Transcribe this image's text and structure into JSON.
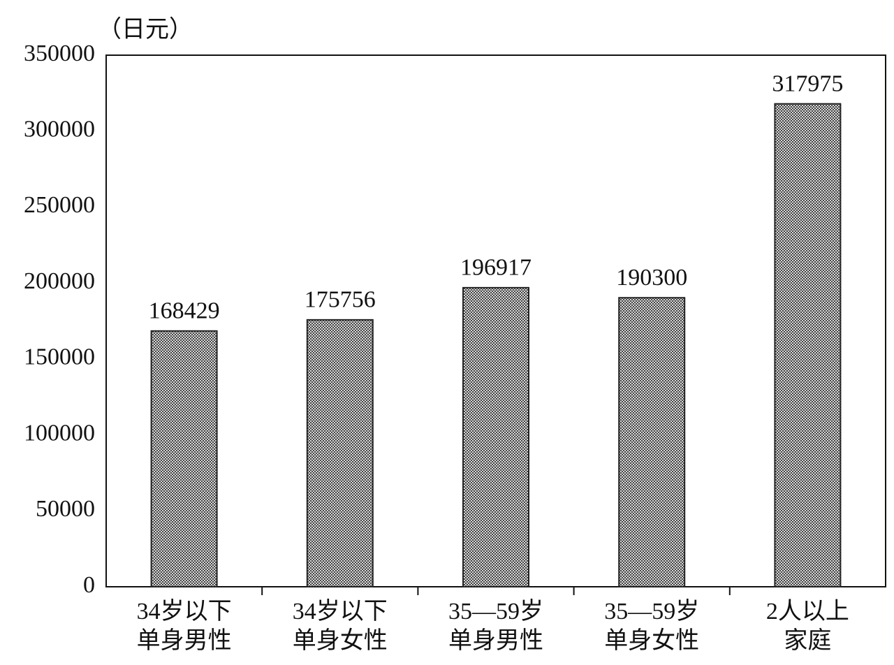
{
  "chart_data": {
    "type": "bar",
    "y_label": "（日元）",
    "categories": [
      "34岁以下\n单身男性",
      "34岁以下\n单身女性",
      "35—59岁\n单身男性",
      "35—59岁\n单身女性",
      "2人以上\n家庭"
    ],
    "values": [
      168429,
      175756,
      196917,
      190300,
      317975
    ],
    "color": "#7a7a7a",
    "ylim": [
      0,
      350000
    ],
    "yticks": [
      0,
      50000,
      100000,
      150000,
      200000,
      250000,
      300000,
      350000
    ],
    "grid": false
  }
}
